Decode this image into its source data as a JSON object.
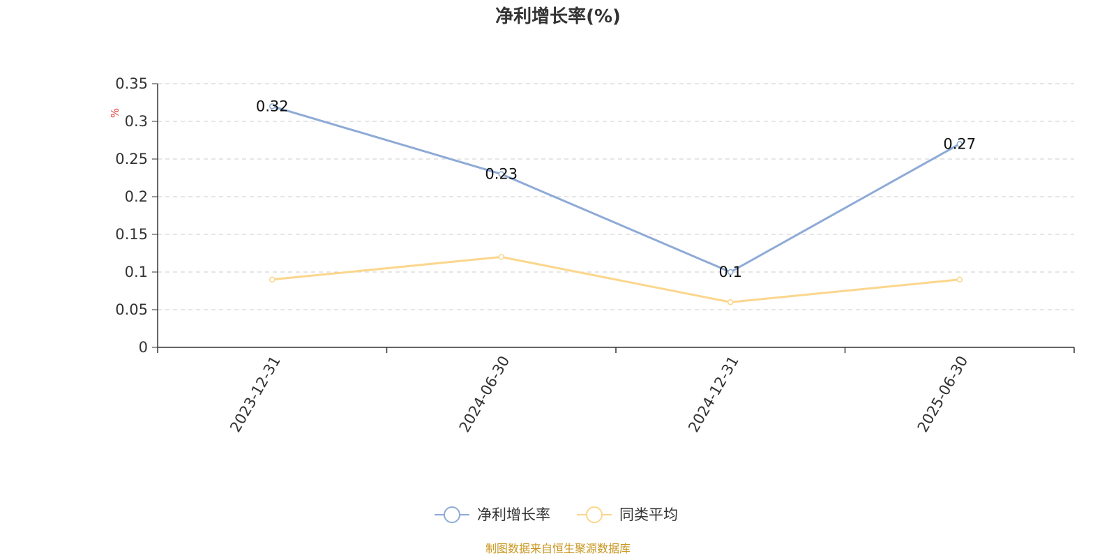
{
  "chart_data": {
    "type": "line",
    "title": "净利增长率(%)",
    "unit": "%",
    "categories": [
      "2023-12-31",
      "2024-06-30",
      "2024-12-31",
      "2025-06-30"
    ],
    "ylim": [
      0,
      0.35
    ],
    "yticks": [
      "0",
      "0.05",
      "0.1",
      "0.15",
      "0.2",
      "0.25",
      "0.3",
      "0.35"
    ],
    "grid": true,
    "legend_position": "bottom-center",
    "series": [
      {
        "name": "净利增长率",
        "values": [
          0.32,
          0.23,
          0.1,
          0.27
        ],
        "labels": [
          "0.32",
          "0.23",
          "0.1",
          "0.27"
        ],
        "color": "#8eaad6"
      },
      {
        "name": "同类平均",
        "values": [
          0.09,
          0.12,
          0.06,
          0.09
        ],
        "color": "#fbd68c"
      }
    ]
  },
  "source": "制图数据来自恒生聚源数据库"
}
